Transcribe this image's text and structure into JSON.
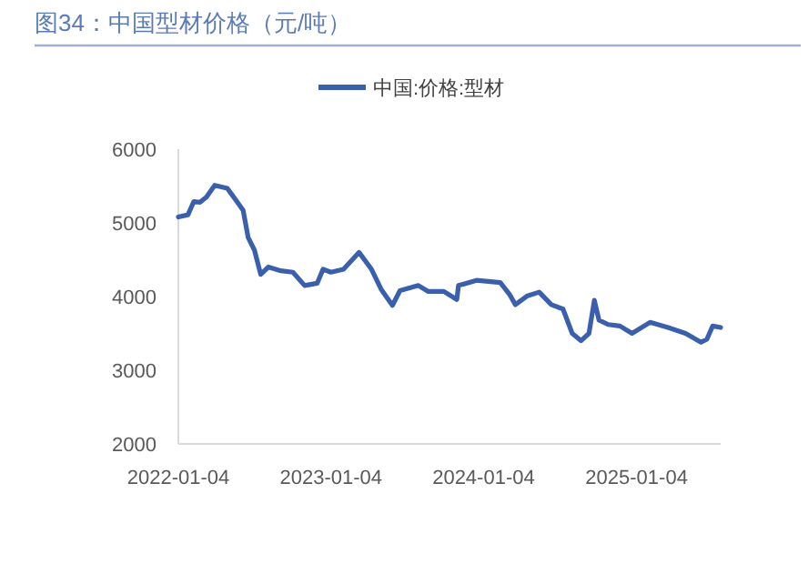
{
  "chart_data": {
    "type": "line",
    "title": "图34：中国型材价格（元/吨）",
    "x": [
      "2022-01-04",
      "2022-01-27",
      "2022-02-10",
      "2022-02-25",
      "2022-03-12",
      "2022-04-01",
      "2022-05-01",
      "2022-05-24",
      "2022-06-08",
      "2022-06-20",
      "2022-07-05",
      "2022-07-20",
      "2022-08-07",
      "2022-09-06",
      "2022-10-05",
      "2022-11-02",
      "2022-12-02",
      "2022-12-16",
      "2023-01-04",
      "2023-02-03",
      "2023-03-12",
      "2023-04-11",
      "2023-05-04",
      "2023-05-31",
      "2023-06-18",
      "2023-08-01",
      "2023-08-24",
      "2023-10-01",
      "2023-11-01",
      "2023-11-05",
      "2023-12-18",
      "2024-02-13",
      "2024-03-06",
      "2024-03-20",
      "2024-04-18",
      "2024-05-16",
      "2024-06-14",
      "2024-07-12",
      "2024-08-03",
      "2024-08-24",
      "2024-09-12",
      "2024-09-25",
      "2024-10-06",
      "2024-10-28",
      "2024-11-25",
      "2024-12-24",
      "2025-02-05",
      "2025-03-20",
      "2025-05-01",
      "2025-06-07",
      "2025-06-21",
      "2025-07-05",
      "2025-07-24"
    ],
    "series": [
      {
        "name": "中国:价格:型材",
        "color": "#3a5fad",
        "values": [
          5080,
          5110,
          5290,
          5280,
          5350,
          5510,
          5470,
          5290,
          5170,
          4800,
          4630,
          4300,
          4400,
          4350,
          4330,
          4150,
          4180,
          4370,
          4330,
          4370,
          4600,
          4370,
          4100,
          3880,
          4080,
          4150,
          4070,
          4070,
          3960,
          4150,
          4220,
          4190,
          4030,
          3890,
          4010,
          4060,
          3890,
          3830,
          3500,
          3400,
          3500,
          3950,
          3680,
          3620,
          3600,
          3500,
          3650,
          3580,
          3500,
          3380,
          3420,
          3600,
          3580
        ]
      }
    ],
    "xlim": [
      "2022-01-04",
      "2025-07-24"
    ],
    "xticks": [
      "2022-01-04",
      "2023-01-04",
      "2024-01-04",
      "2025-01-04"
    ],
    "ylim": [
      2000,
      6000
    ],
    "yticks": [
      2000,
      3000,
      4000,
      5000,
      6000
    ],
    "legend": "top"
  }
}
